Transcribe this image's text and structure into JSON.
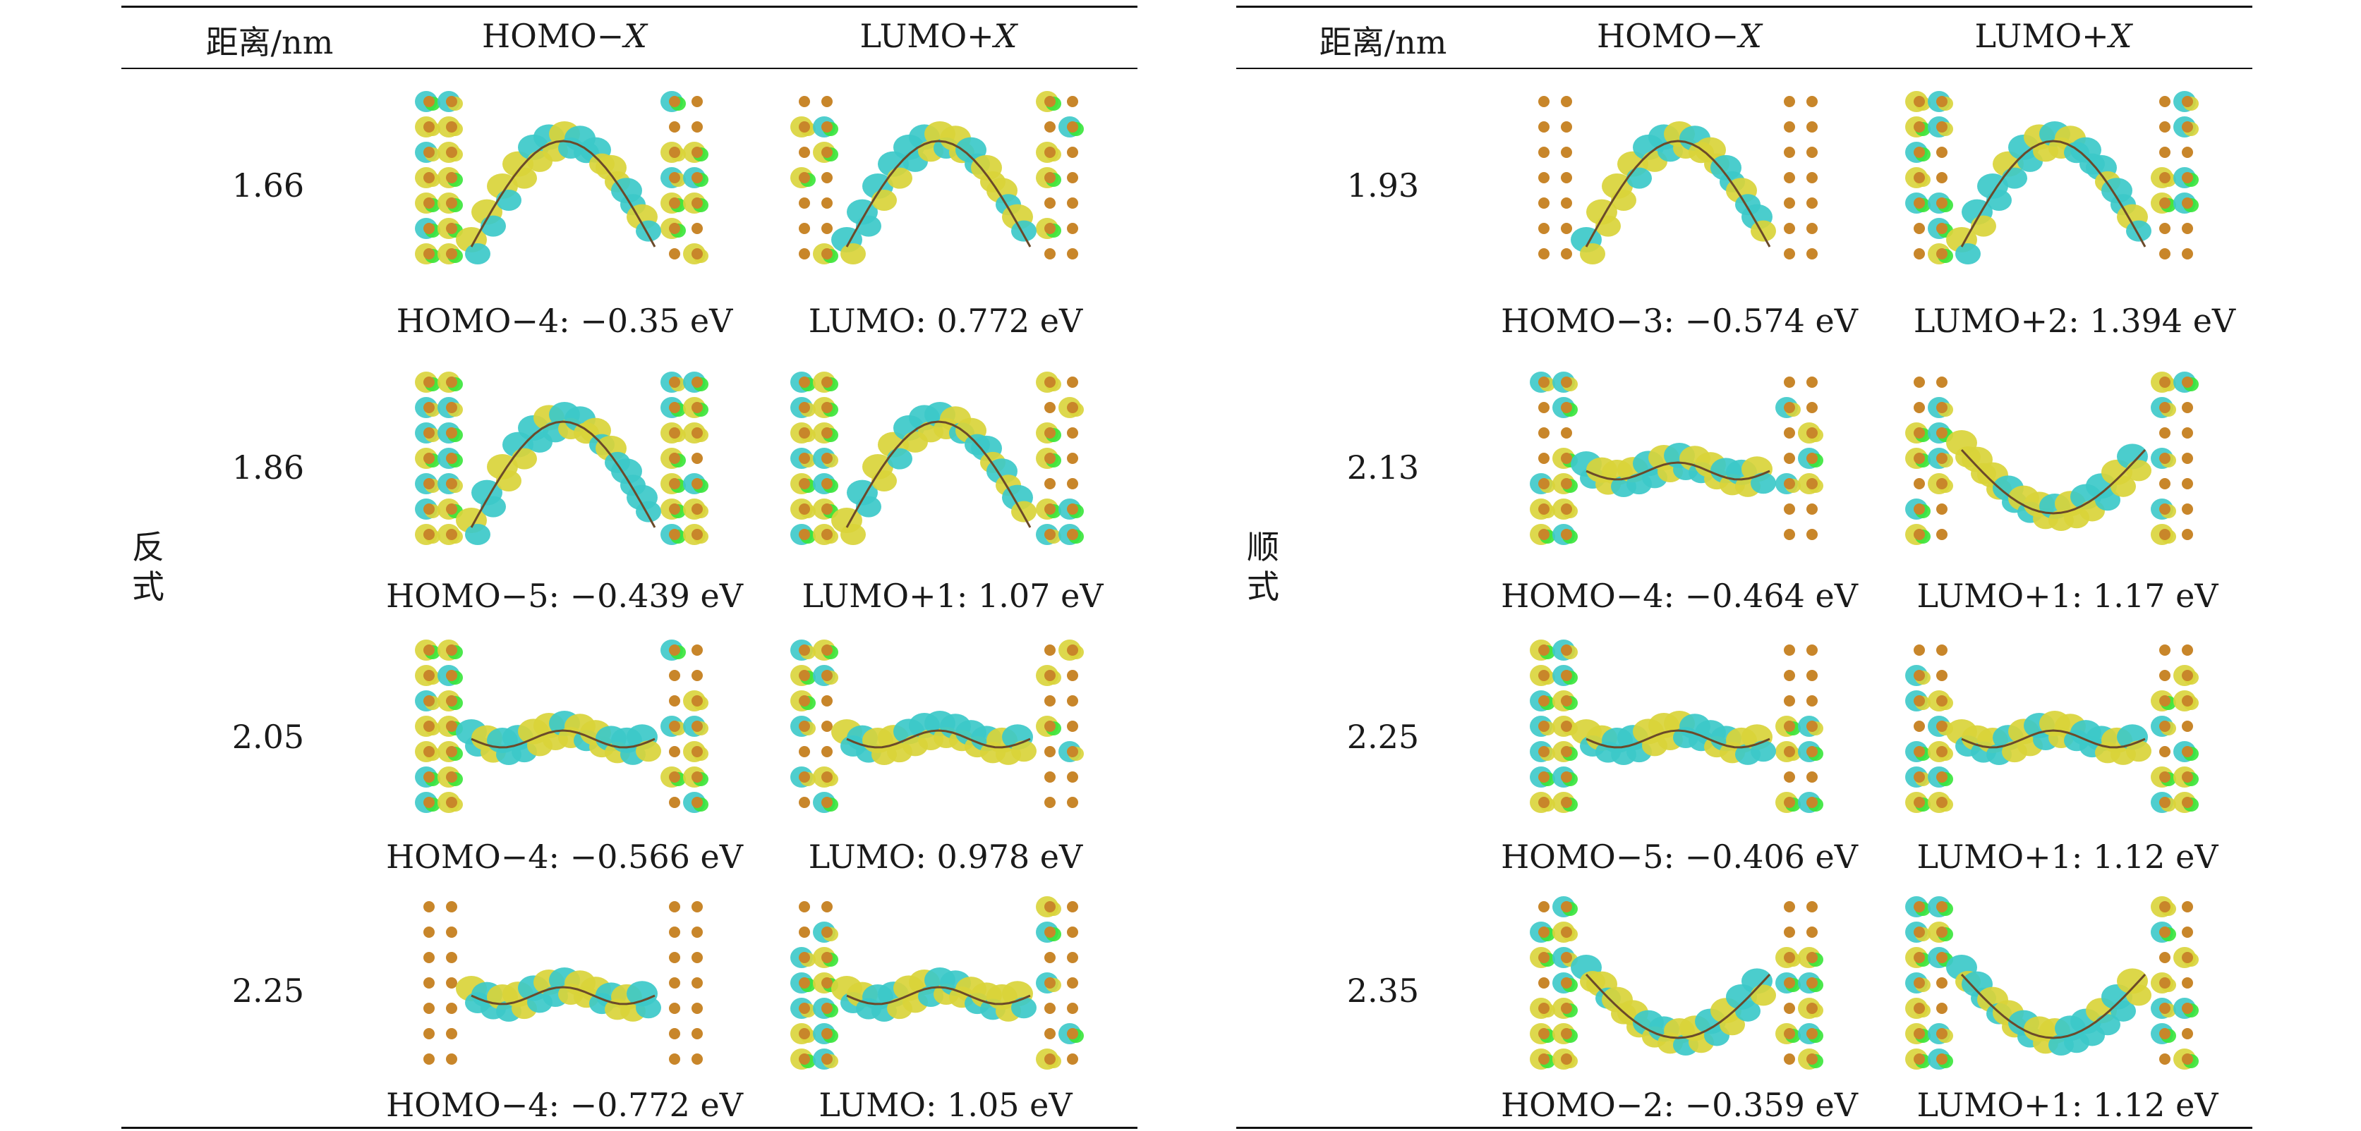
{
  "tables": [
    {
      "header": {
        "distance": "距离/nm",
        "homo": "HOMO−",
        "lumo": "LUMO+",
        "var": "X"
      },
      "group_label": [
        "反",
        "式"
      ],
      "rows": [
        {
          "distance": "1.66",
          "homo_caption": "HOMO−4: −0.35 eV",
          "lumo_caption": "LUMO: 0.772 eV"
        },
        {
          "distance": "1.86",
          "homo_caption": "HOMO−5: −0.439 eV",
          "lumo_caption": "LUMO+1: 1.07 eV"
        },
        {
          "distance": "2.05",
          "homo_caption": "HOMO−4: −0.566 eV",
          "lumo_caption": "LUMO: 0.978 eV"
        },
        {
          "distance": "2.25",
          "homo_caption": "HOMO−4: −0.772 eV",
          "lumo_caption": "LUMO: 1.05 eV"
        }
      ]
    },
    {
      "header": {
        "distance": "距离/nm",
        "homo": "HOMO−",
        "lumo": "LUMO+",
        "var": "X"
      },
      "group_label": [
        "顺",
        "式"
      ],
      "rows": [
        {
          "distance": "1.93",
          "homo_caption": "HOMO−3: −0.574 eV",
          "lumo_caption": "LUMO+2: 1.394 eV"
        },
        {
          "distance": "2.13",
          "homo_caption": "HOMO−4: −0.464 eV",
          "lumo_caption": "LUMO+1: 1.17 eV"
        },
        {
          "distance": "2.25",
          "homo_caption": "HOMO−5: −0.406 eV",
          "lumo_caption": "LUMO+1: 1.12 eV"
        },
        {
          "distance": "2.35",
          "homo_caption": "HOMO−2: −0.359 eV",
          "lumo_caption": "LUMO+1: 1.12 eV"
        }
      ]
    }
  ],
  "colors": {
    "yellow": "#d9d43a",
    "cyan": "#3cc9c9",
    "green": "#39e639",
    "gold": "#c8862a",
    "rule": "#111111"
  }
}
